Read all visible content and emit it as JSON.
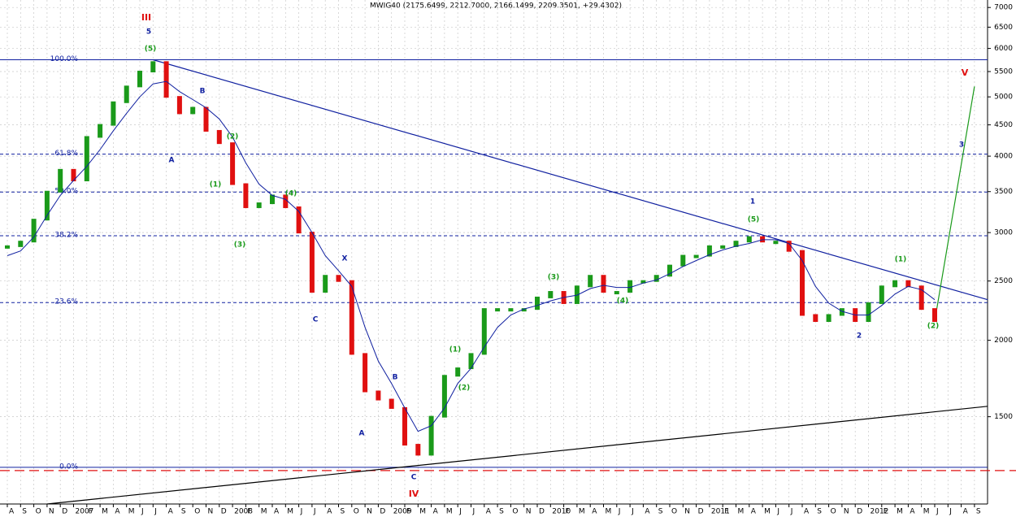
{
  "chart_data": {
    "type": "candle",
    "title": "MWIG40 (2175.6499, 2212.7000, 2166.1499, 2209.3501, +29.4302)",
    "categories": [
      "A",
      "S",
      "O",
      "N",
      "D",
      "2007",
      "F",
      "M",
      "A",
      "M",
      "J",
      "J",
      "A",
      "S",
      "O",
      "N",
      "D",
      "2008",
      "F",
      "M",
      "A",
      "M",
      "J",
      "J",
      "A",
      "S",
      "O",
      "N",
      "D",
      "2009",
      "F",
      "M",
      "A",
      "M",
      "J",
      "J",
      "A",
      "S",
      "O",
      "N",
      "D",
      "2010",
      "F",
      "M",
      "A",
      "M",
      "J",
      "J",
      "A",
      "S",
      "O",
      "N",
      "D",
      "2011",
      "F",
      "M",
      "A",
      "M",
      "J",
      "J",
      "A",
      "S",
      "O",
      "N",
      "D",
      "2012",
      "F",
      "M",
      "A",
      "M",
      "J",
      "J",
      "A",
      "S"
    ],
    "series": [
      {
        "name": "MWIG40",
        "up_color": "#1a9a1a",
        "down_color": "#e01010",
        "values": [
          2850,
          2900,
          3150,
          3500,
          3800,
          3650,
          4300,
          4500,
          4900,
          5200,
          5500,
          5700,
          5000,
          4700,
          4800,
          4400,
          4200,
          3600,
          3300,
          3350,
          3450,
          3300,
          3000,
          2400,
          2550,
          2500,
          1900,
          1650,
          1600,
          1550,
          1350,
          1300,
          1500,
          1750,
          1800,
          1900,
          2250,
          2250,
          2250,
          2250,
          2350,
          2400,
          2300,
          2450,
          2550,
          2400,
          2400,
          2500,
          2500,
          2550,
          2650,
          2750,
          2750,
          2850,
          2850,
          2900,
          2950,
          2900,
          2900,
          2800,
          2200,
          2150,
          2200,
          2250,
          2150,
          2300,
          2450,
          2500,
          2450,
          2250,
          2150,
          null,
          null,
          null
        ]
      },
      {
        "name": "MA",
        "color": "#1020a0",
        "values": [
          2750,
          2800,
          2950,
          3200,
          3450,
          3650,
          3850,
          4100,
          4400,
          4700,
          5000,
          5250,
          5300,
          5100,
          4950,
          4800,
          4600,
          4300,
          3900,
          3600,
          3450,
          3400,
          3250,
          3000,
          2750,
          2600,
          2450,
          2100,
          1850,
          1700,
          1550,
          1420,
          1450,
          1550,
          1700,
          1800,
          1950,
          2100,
          2200,
          2250,
          2280,
          2320,
          2350,
          2370,
          2430,
          2460,
          2440,
          2440,
          2480,
          2510,
          2570,
          2640,
          2700,
          2760,
          2810,
          2850,
          2880,
          2920,
          2920,
          2880,
          2700,
          2450,
          2300,
          2230,
          2200,
          2200,
          2280,
          2380,
          2450,
          2420,
          2330,
          null,
          null,
          null
        ]
      }
    ],
    "log_scale": true,
    "grid": true,
    "ylim": [
      1080,
      7200
    ],
    "yticks": [
      1500,
      2000,
      2500,
      3000,
      3500,
      4000,
      4500,
      5000,
      5500,
      6000,
      6500,
      7000
    ],
    "fib_levels": [
      {
        "label": "100.0%",
        "value": 5750,
        "style": "solid"
      },
      {
        "label": "61.8%",
        "value": 4030,
        "style": "dashed"
      },
      {
        "label": "50.0%",
        "value": 3495,
        "style": "dashed"
      },
      {
        "label": "38.2%",
        "value": 2965,
        "style": "dashed"
      },
      {
        "label": "23.6%",
        "value": 2305,
        "style": "dashed"
      },
      {
        "label": "0.0%",
        "value": 1240,
        "style": "solid"
      }
    ],
    "trendlines": [
      {
        "from": [
          11,
          5750
        ],
        "to": [
          74,
          2330
        ],
        "color": "#1020a0"
      },
      {
        "from": [
          3,
          1080
        ],
        "to": [
          74,
          1560
        ],
        "color": "#000000"
      },
      {
        "from": [
          70,
          2150
        ],
        "to": [
          73,
          5200
        ],
        "color": "#1a9a1a"
      }
    ],
    "annotations": [
      {
        "text": "III",
        "color": "#e01010"
      },
      {
        "text": "5",
        "color": "#1020a0"
      },
      {
        "text": "(5)",
        "color": "#1a9a1a"
      },
      {
        "text": "A",
        "color": "#1020a0"
      },
      {
        "text": "B",
        "color": "#1020a0"
      },
      {
        "text": "(1)",
        "color": "#1a9a1a"
      },
      {
        "text": "(2)",
        "color": "#1a9a1a"
      },
      {
        "text": "(3)",
        "color": "#1a9a1a"
      },
      {
        "text": "(4)",
        "color": "#1a9a1a"
      },
      {
        "text": "C",
        "color": "#1020a0"
      },
      {
        "text": "X",
        "color": "#1020a0"
      },
      {
        "text": "A",
        "color": "#1020a0"
      },
      {
        "text": "B",
        "color": "#1020a0"
      },
      {
        "text": "C",
        "color": "#1020a0"
      },
      {
        "text": "IV",
        "color": "#e01010"
      },
      {
        "text": "(1)",
        "color": "#1a9a1a"
      },
      {
        "text": "(2)",
        "color": "#1a9a1a"
      },
      {
        "text": "(3)",
        "color": "#1a9a1a"
      },
      {
        "text": "(4)",
        "color": "#1a9a1a"
      },
      {
        "text": "1",
        "color": "#1020a0"
      },
      {
        "text": "(5)",
        "color": "#1a9a1a"
      },
      {
        "text": "(1)",
        "color": "#1a9a1a"
      },
      {
        "text": "2",
        "color": "#1020a0"
      },
      {
        "text": "(2)",
        "color": "#1a9a1a"
      },
      {
        "text": "V",
        "color": "#e01010"
      },
      {
        "text": "3",
        "color": "#1020a0"
      }
    ]
  }
}
